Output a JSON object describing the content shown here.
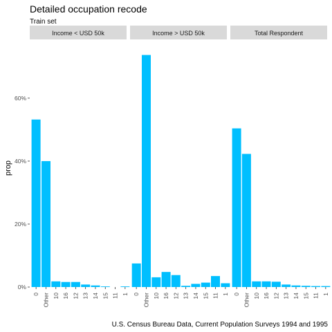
{
  "chart_data": {
    "type": "bar",
    "title": "Detailed occupation recode",
    "subtitle": "Train set",
    "ylabel": "prop",
    "xlabel": "",
    "caption": "U.S. Census Bureau Data, Current Population Surveys 1994 and 1995",
    "categories": [
      "0",
      "Other",
      "10",
      "16",
      "12",
      "13",
      "14",
      "15",
      "11",
      "1"
    ],
    "ylim": [
      0,
      0.76
    ],
    "yticks": [
      0,
      0.2,
      0.4,
      0.6
    ],
    "ytick_labels": [
      "0%",
      "20%",
      "40%",
      "60%"
    ],
    "bar_color": "#00BFFF",
    "panels": [
      {
        "name": "Income < USD 50k",
        "values": [
          0.532,
          0.4,
          0.018,
          0.016,
          0.016,
          0.008,
          0.005,
          0.002,
          0.0,
          0.002
        ]
      },
      {
        "name": "Income > USD 50k",
        "values": [
          0.075,
          0.737,
          0.031,
          0.048,
          0.038,
          0.004,
          0.01,
          0.014,
          0.035,
          0.012
        ]
      },
      {
        "name": "Total Respondent",
        "values": [
          0.504,
          0.423,
          0.018,
          0.018,
          0.017,
          0.008,
          0.005,
          0.004,
          0.003,
          0.003
        ]
      }
    ]
  }
}
